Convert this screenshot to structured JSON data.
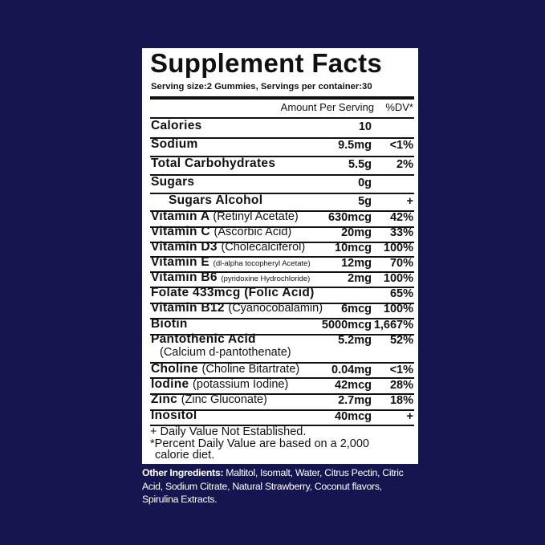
{
  "title": "Supplement Facts",
  "serving": "Serving size:2 Gummies, Servings per container:30",
  "header": {
    "amount_per_serving": "Amount Per Serving",
    "dv": "%DV*"
  },
  "rows": [
    {
      "name": "Calories",
      "sub": "",
      "amount": "10",
      "dv": ""
    },
    {
      "name": "Sodium",
      "sub": "",
      "amount": "9.5mg",
      "dv": "<1%"
    },
    {
      "name": "Total Carbohydrates",
      "sub": "",
      "amount": "5.5g",
      "dv": "2%"
    },
    {
      "name": "Sugars",
      "sub": "",
      "amount": "0g",
      "dv": ""
    },
    {
      "name": "Sugars Alcohol",
      "sub": "",
      "amount": "5g",
      "dv": "+"
    },
    {
      "name": "Vitamin A",
      "sub": "(Retinyl Acetate)",
      "amount": "630mcg",
      "dv": "42%"
    },
    {
      "name": "Vitamin C",
      "sub": "(Ascorbic Acid)",
      "amount": "20mg",
      "dv": "33%"
    },
    {
      "name": "Vitamin D3",
      "sub": "(Cholecalciferol)",
      "amount": "10mcg",
      "dv": "100%"
    },
    {
      "name": "Vitamin E",
      "sub": "(dl-alpha tocopheryl Acetate)",
      "amount": "12mg",
      "dv": "70%"
    },
    {
      "name": "Vitamin B6",
      "sub": "(pyridoxine Hydrochloride)",
      "amount": "2mg",
      "dv": "100%"
    },
    {
      "name": "Folate  433mcg (Folic Acid)",
      "sub": "",
      "amount": "",
      "dv": "65%"
    },
    {
      "name": "Vitamin B12",
      "sub": "(Cyanocobalamin)",
      "amount": "6mcg",
      "dv": "100%"
    },
    {
      "name": "Biotin",
      "sub": "",
      "amount": "5000mcg",
      "dv": "1,667%"
    },
    {
      "name": "Pantothenic Acid",
      "sub": "",
      "sub2": "(Calcium d-pantothenate)",
      "amount": "5.2mg",
      "dv": "52%"
    },
    {
      "name": "Choline",
      "sub": "(Choline Bitartrate)",
      "amount": "0.04mg",
      "dv": "<1%"
    },
    {
      "name": "Iodine",
      "sub": "(potassium Iodine)",
      "amount": "42mcg",
      "dv": "28%"
    },
    {
      "name": "Zinc",
      "sub": "(Zinc Gluconate)",
      "amount": "2.7mg",
      "dv": "18%"
    },
    {
      "name": "Inositol",
      "sub": "",
      "amount": "40mcg",
      "dv": "+"
    }
  ],
  "footnotes": [
    "+ Daily Value Not Established.",
    "*Percent Daily Value are based on a 2,000",
    "calorie diet."
  ],
  "other_ingredients": {
    "label": "Other Ingredients:",
    "text": " Maltitol, Isomalt, Water, Citrus Pectin, Citric Acid,  Sodium Citrate, Natural Strawberry, Coconut flavors, Spirulina Extracts."
  },
  "colors": {
    "background": "#16154f",
    "panel": "#ffffff",
    "text": "#111111"
  }
}
